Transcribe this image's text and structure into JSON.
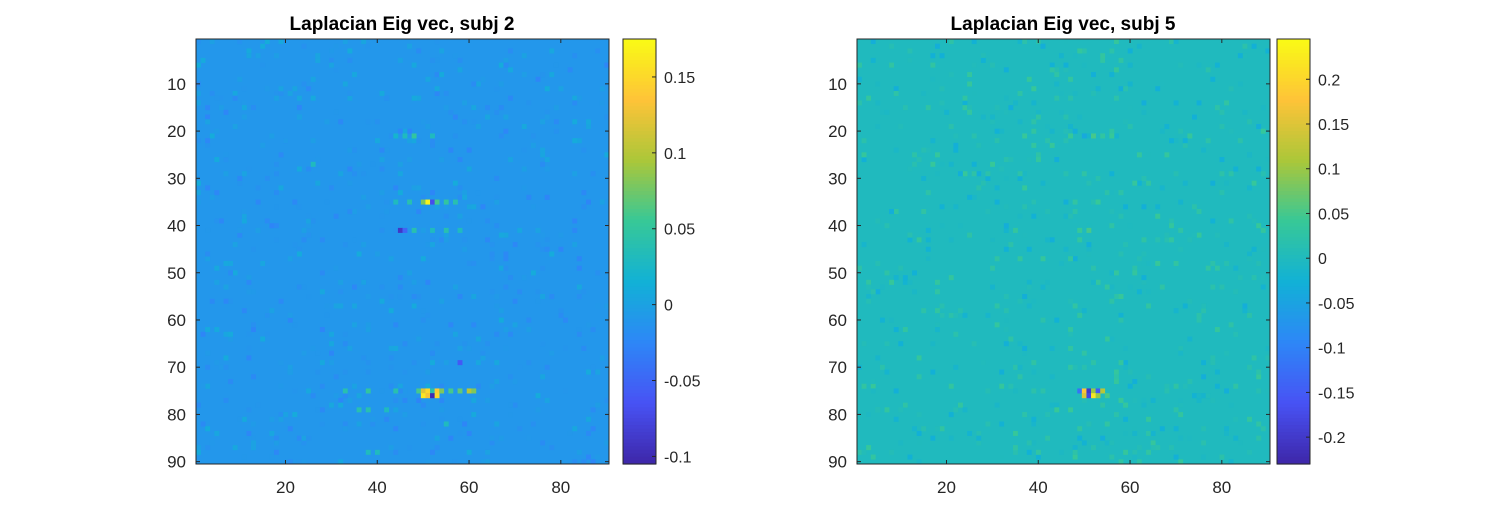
{
  "chart_data": [
    {
      "type": "heatmap",
      "title": "Laplacian Eig vec, subj 2",
      "xlabel": "",
      "ylabel": "",
      "grid": false,
      "rows": 90,
      "cols": 90,
      "xlim": [
        0.5,
        90.5
      ],
      "ylim": [
        0.5,
        90.5
      ],
      "y_direction": "reverse",
      "xticks": [
        20,
        40,
        60,
        80
      ],
      "yticks": [
        10,
        20,
        30,
        40,
        50,
        60,
        70,
        80,
        90
      ],
      "colormap": "parula",
      "clim": [
        -0.105,
        0.175
      ],
      "colorbar_ticks": [
        -0.1,
        -0.05,
        0,
        0.05,
        0.1,
        0.15
      ],
      "colorbar_labels": [
        "-0.1",
        "-0.05",
        "0",
        "0.05",
        "0.1",
        "0.15"
      ],
      "background_value": -0.01,
      "notable_cells": [
        {
          "row": 21,
          "col": 44,
          "value": 0.02
        },
        {
          "row": 21,
          "col": 46,
          "value": 0.03
        },
        {
          "row": 21,
          "col": 48,
          "value": 0.05
        },
        {
          "row": 21,
          "col": 52,
          "value": 0.03
        },
        {
          "row": 27,
          "col": 26,
          "value": 0.03
        },
        {
          "row": 35,
          "col": 44,
          "value": 0.03
        },
        {
          "row": 35,
          "col": 47,
          "value": 0.04
        },
        {
          "row": 35,
          "col": 50,
          "value": 0.08
        },
        {
          "row": 35,
          "col": 51,
          "value": 0.17
        },
        {
          "row": 35,
          "col": 52,
          "value": -0.07
        },
        {
          "row": 35,
          "col": 53,
          "value": 0.06
        },
        {
          "row": 35,
          "col": 55,
          "value": 0.05
        },
        {
          "row": 35,
          "col": 57,
          "value": 0.04
        },
        {
          "row": 41,
          "col": 45,
          "value": -0.09
        },
        {
          "row": 41,
          "col": 46,
          "value": -0.05
        },
        {
          "row": 41,
          "col": 48,
          "value": 0.04
        },
        {
          "row": 41,
          "col": 52,
          "value": 0.03
        },
        {
          "row": 41,
          "col": 55,
          "value": 0.04
        },
        {
          "row": 41,
          "col": 58,
          "value": 0.03
        },
        {
          "row": 69,
          "col": 58,
          "value": -0.06
        },
        {
          "row": 75,
          "col": 33,
          "value": 0.04
        },
        {
          "row": 75,
          "col": 38,
          "value": 0.05
        },
        {
          "row": 75,
          "col": 44,
          "value": 0.04
        },
        {
          "row": 75,
          "col": 49,
          "value": 0.06
        },
        {
          "row": 75,
          "col": 50,
          "value": 0.12
        },
        {
          "row": 75,
          "col": 51,
          "value": 0.15
        },
        {
          "row": 75,
          "col": 52,
          "value": 0.04
        },
        {
          "row": 75,
          "col": 53,
          "value": 0.14
        },
        {
          "row": 75,
          "col": 54,
          "value": 0.08
        },
        {
          "row": 75,
          "col": 56,
          "value": 0.06
        },
        {
          "row": 75,
          "col": 58,
          "value": 0.07
        },
        {
          "row": 75,
          "col": 60,
          "value": 0.1
        },
        {
          "row": 75,
          "col": 61,
          "value": 0.08
        },
        {
          "row": 76,
          "col": 50,
          "value": 0.16
        },
        {
          "row": 76,
          "col": 51,
          "value": 0.13
        },
        {
          "row": 76,
          "col": 52,
          "value": -0.1
        },
        {
          "row": 76,
          "col": 53,
          "value": 0.15
        },
        {
          "row": 79,
          "col": 36,
          "value": 0.04
        },
        {
          "row": 79,
          "col": 38,
          "value": 0.04
        },
        {
          "row": 79,
          "col": 42,
          "value": 0.03
        },
        {
          "row": 82,
          "col": 55,
          "value": 0.03
        },
        {
          "row": 88,
          "col": 38,
          "value": 0.03
        },
        {
          "row": 88,
          "col": 40,
          "value": 0.03
        }
      ]
    },
    {
      "type": "heatmap",
      "title": "Laplacian Eig vec, subj 5",
      "xlabel": "",
      "ylabel": "",
      "grid": false,
      "rows": 90,
      "cols": 90,
      "xlim": [
        0.5,
        90.5
      ],
      "ylim": [
        0.5,
        90.5
      ],
      "y_direction": "reverse",
      "xticks": [
        20,
        40,
        60,
        80
      ],
      "yticks": [
        10,
        20,
        30,
        40,
        50,
        60,
        70,
        80,
        90
      ],
      "colormap": "parula",
      "clim": [
        -0.23,
        0.245
      ],
      "colorbar_ticks": [
        -0.2,
        -0.15,
        -0.1,
        -0.05,
        0,
        0.05,
        0.1,
        0.15,
        0.2
      ],
      "colorbar_labels": [
        "-0.2",
        "-0.15",
        "-0.1",
        "-0.05",
        "0",
        "0.05",
        "0.1",
        "0.15",
        "0.2"
      ],
      "background_value": 0.0,
      "notable_cells": [
        {
          "row": 21,
          "col": 47,
          "value": 0.04
        },
        {
          "row": 21,
          "col": 50,
          "value": -0.04
        },
        {
          "row": 21,
          "col": 52,
          "value": 0.05
        },
        {
          "row": 21,
          "col": 56,
          "value": 0.04
        },
        {
          "row": 27,
          "col": 30,
          "value": 0.04
        },
        {
          "row": 35,
          "col": 46,
          "value": -0.03
        },
        {
          "row": 35,
          "col": 48,
          "value": 0.03
        },
        {
          "row": 35,
          "col": 53,
          "value": 0.04
        },
        {
          "row": 41,
          "col": 49,
          "value": 0.04
        },
        {
          "row": 41,
          "col": 51,
          "value": 0.05
        },
        {
          "row": 75,
          "col": 49,
          "value": -0.12
        },
        {
          "row": 75,
          "col": 50,
          "value": 0.18
        },
        {
          "row": 75,
          "col": 51,
          "value": -0.2
        },
        {
          "row": 75,
          "col": 52,
          "value": 0.1
        },
        {
          "row": 75,
          "col": 53,
          "value": -0.15
        },
        {
          "row": 75,
          "col": 54,
          "value": 0.12
        },
        {
          "row": 76,
          "col": 50,
          "value": 0.15
        },
        {
          "row": 76,
          "col": 51,
          "value": -0.18
        },
        {
          "row": 76,
          "col": 52,
          "value": 0.22
        },
        {
          "row": 76,
          "col": 53,
          "value": 0.1
        },
        {
          "row": 76,
          "col": 55,
          "value": 0.05
        },
        {
          "row": 79,
          "col": 44,
          "value": 0.04
        },
        {
          "row": 79,
          "col": 47,
          "value": 0.04
        },
        {
          "row": 82,
          "col": 55,
          "value": 0.03
        },
        {
          "row": 88,
          "col": 40,
          "value": 0.03
        },
        {
          "row": 88,
          "col": 64,
          "value": 0.03
        }
      ]
    }
  ]
}
